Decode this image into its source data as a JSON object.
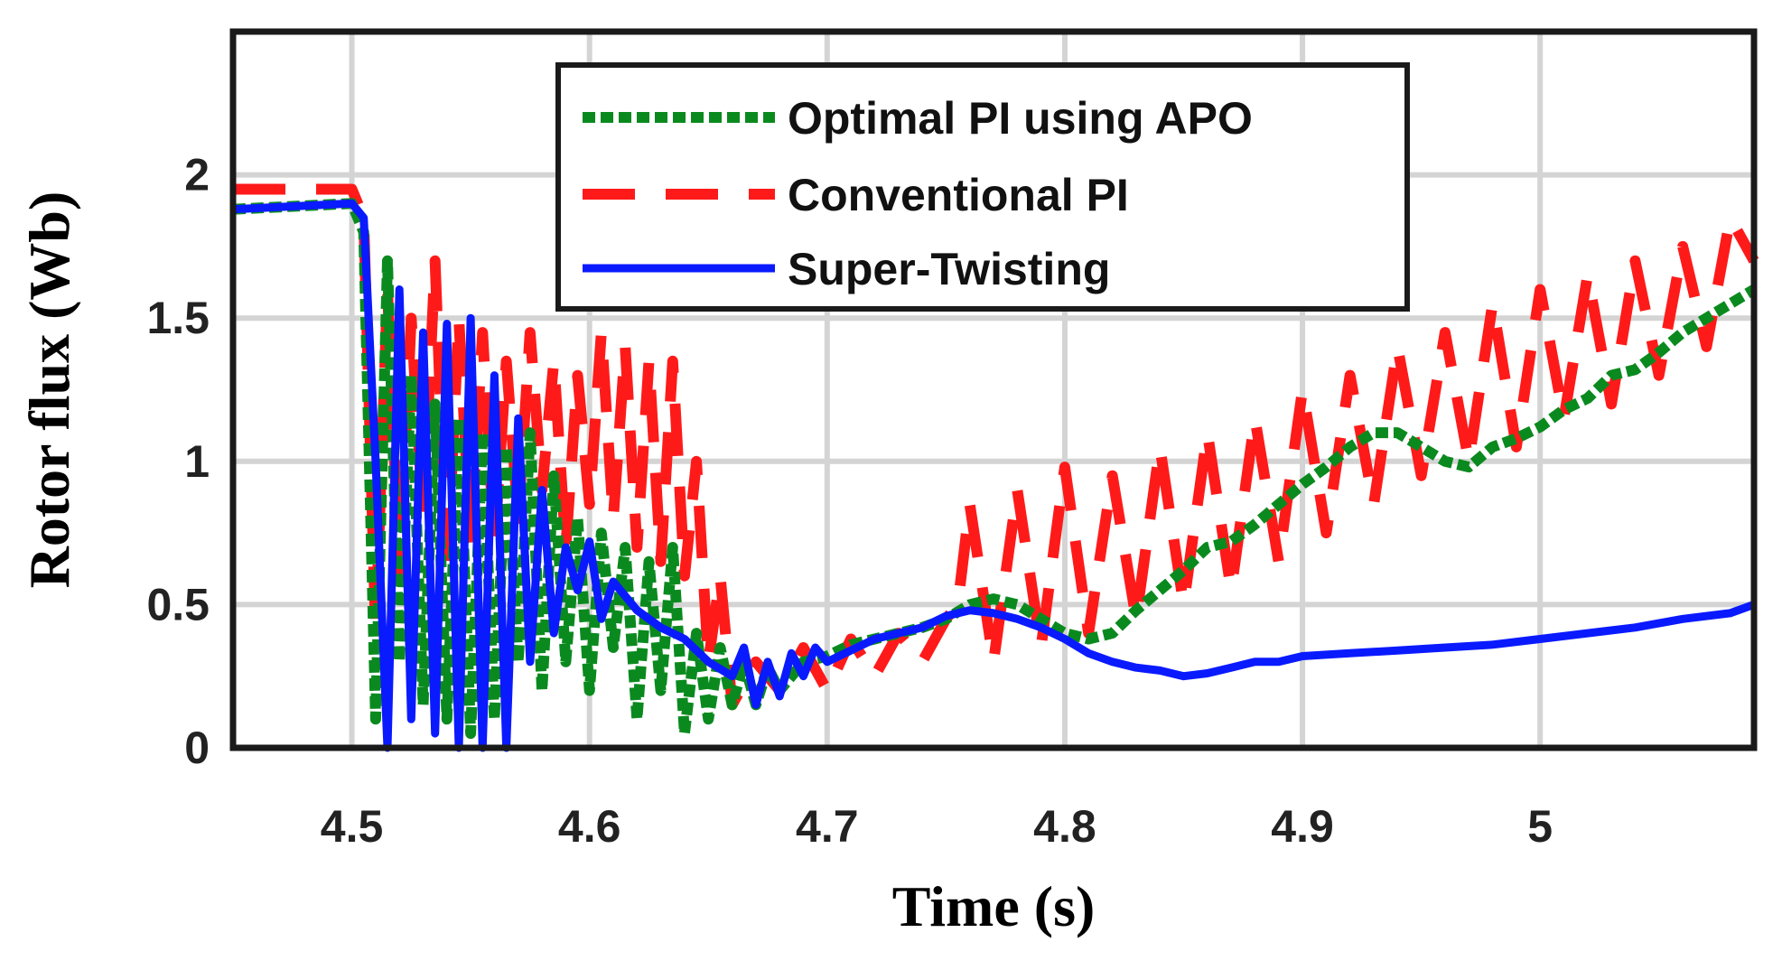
{
  "chart_data": {
    "type": "line",
    "title": "",
    "xlabel": "Time (s)",
    "ylabel": "Rotor flux (Wb)",
    "xlim": [
      4.45,
      5.09
    ],
    "ylim": [
      0,
      2.5
    ],
    "grid": true,
    "legend_position": "top-center",
    "x_ticks": [
      4.5,
      4.6,
      4.7,
      4.8,
      4.9,
      5
    ],
    "x_tick_labels": [
      "4.5",
      "4.6",
      "4.7",
      "4.8",
      "4.9",
      "5"
    ],
    "y_ticks": [
      0,
      0.5,
      1,
      1.5,
      2
    ],
    "y_tick_labels": [
      "0",
      "0.5",
      "1",
      "1.5",
      "2"
    ],
    "series": [
      {
        "name": "Optimal PI using APO",
        "color": "#0a8a1e",
        "style": "dotted",
        "x": [
          4.45,
          4.5,
          4.505,
          4.51,
          4.515,
          4.52,
          4.525,
          4.53,
          4.535,
          4.54,
          4.545,
          4.55,
          4.555,
          4.56,
          4.565,
          4.57,
          4.575,
          4.58,
          4.585,
          4.59,
          4.595,
          4.6,
          4.605,
          4.61,
          4.615,
          4.62,
          4.625,
          4.63,
          4.635,
          4.64,
          4.645,
          4.65,
          4.655,
          4.66,
          4.665,
          4.67,
          4.675,
          4.68,
          4.69,
          4.7,
          4.71,
          4.72,
          4.73,
          4.74,
          4.75,
          4.76,
          4.77,
          4.78,
          4.79,
          4.8,
          4.81,
          4.82,
          4.83,
          4.84,
          4.85,
          4.86,
          4.87,
          4.88,
          4.89,
          4.9,
          4.91,
          4.92,
          4.93,
          4.94,
          4.95,
          4.96,
          4.97,
          4.98,
          4.99,
          5.0,
          5.01,
          5.02,
          5.03,
          5.04,
          5.05,
          5.06,
          5.07,
          5.08,
          5.09
        ],
        "values": [
          1.88,
          1.9,
          1.8,
          0.1,
          1.7,
          0.3,
          1.3,
          0.15,
          1.2,
          0.1,
          1.15,
          0.05,
          1.1,
          0.1,
          1.05,
          0.3,
          1.1,
          0.2,
          0.95,
          0.3,
          0.8,
          0.2,
          0.75,
          0.35,
          0.7,
          0.1,
          0.65,
          0.2,
          0.7,
          0.05,
          0.4,
          0.1,
          0.35,
          0.15,
          0.3,
          0.15,
          0.28,
          0.2,
          0.3,
          0.32,
          0.36,
          0.38,
          0.4,
          0.42,
          0.45,
          0.5,
          0.52,
          0.5,
          0.45,
          0.4,
          0.38,
          0.4,
          0.48,
          0.55,
          0.62,
          0.7,
          0.72,
          0.78,
          0.85,
          0.92,
          0.98,
          1.05,
          1.1,
          1.1,
          1.05,
          1.0,
          0.98,
          1.05,
          1.08,
          1.12,
          1.18,
          1.22,
          1.3,
          1.32,
          1.38,
          1.45,
          1.5,
          1.55,
          1.6
        ]
      },
      {
        "name": "Conventional PI",
        "color": "#ff1a1a",
        "style": "dashed",
        "x": [
          4.45,
          4.5,
          4.505,
          4.51,
          4.515,
          4.52,
          4.525,
          4.53,
          4.535,
          4.54,
          4.545,
          4.55,
          4.555,
          4.56,
          4.565,
          4.57,
          4.575,
          4.58,
          4.585,
          4.59,
          4.595,
          4.6,
          4.605,
          4.61,
          4.615,
          4.62,
          4.625,
          4.63,
          4.635,
          4.64,
          4.645,
          4.65,
          4.655,
          4.66,
          4.67,
          4.68,
          4.69,
          4.7,
          4.71,
          4.72,
          4.73,
          4.74,
          4.75,
          4.755,
          4.76,
          4.77,
          4.78,
          4.79,
          4.8,
          4.81,
          4.82,
          4.83,
          4.84,
          4.85,
          4.86,
          4.87,
          4.88,
          4.89,
          4.9,
          4.91,
          4.92,
          4.93,
          4.94,
          4.95,
          4.96,
          4.97,
          4.98,
          4.99,
          5.0,
          5.01,
          5.02,
          5.03,
          5.04,
          5.05,
          5.06,
          5.07,
          5.08,
          5.09
        ],
        "values": [
          1.95,
          1.95,
          1.85,
          0.4,
          1.6,
          0.6,
          1.5,
          0.8,
          1.7,
          0.6,
          1.5,
          0.7,
          1.45,
          0.7,
          1.35,
          0.8,
          1.45,
          0.9,
          1.35,
          0.7,
          1.3,
          0.85,
          1.45,
          0.8,
          1.4,
          0.7,
          1.35,
          0.65,
          1.35,
          0.6,
          1.0,
          0.3,
          0.6,
          0.15,
          0.3,
          0.2,
          0.35,
          0.2,
          0.38,
          0.25,
          0.4,
          0.3,
          0.45,
          0.5,
          0.85,
          0.3,
          0.9,
          0.35,
          0.98,
          0.4,
          0.95,
          0.45,
          1.05,
          0.5,
          1.1,
          0.55,
          1.15,
          0.65,
          1.25,
          0.75,
          1.3,
          0.85,
          1.4,
          0.95,
          1.45,
          1.0,
          1.55,
          1.05,
          1.6,
          1.15,
          1.65,
          1.2,
          1.7,
          1.3,
          1.75,
          1.4,
          1.85,
          1.7
        ]
      },
      {
        "name": "Super-Twisting",
        "color": "#0a1aff",
        "style": "solid",
        "x": [
          4.45,
          4.5,
          4.505,
          4.51,
          4.515,
          4.52,
          4.525,
          4.53,
          4.535,
          4.54,
          4.545,
          4.55,
          4.555,
          4.56,
          4.565,
          4.57,
          4.575,
          4.58,
          4.585,
          4.59,
          4.595,
          4.6,
          4.605,
          4.61,
          4.62,
          4.63,
          4.64,
          4.65,
          4.66,
          4.665,
          4.67,
          4.675,
          4.68,
          4.685,
          4.69,
          4.695,
          4.7,
          4.71,
          4.72,
          4.73,
          4.74,
          4.75,
          4.76,
          4.77,
          4.78,
          4.79,
          4.8,
          4.81,
          4.82,
          4.83,
          4.84,
          4.85,
          4.86,
          4.87,
          4.88,
          4.89,
          4.9,
          4.92,
          4.94,
          4.96,
          4.98,
          5.0,
          5.02,
          5.04,
          5.06,
          5.08,
          5.09
        ],
        "values": [
          1.88,
          1.9,
          1.85,
          1.0,
          0.0,
          1.6,
          0.1,
          1.45,
          0.05,
          1.48,
          0.0,
          1.5,
          0.0,
          1.3,
          0.0,
          1.15,
          0.3,
          0.9,
          0.4,
          0.7,
          0.55,
          0.72,
          0.45,
          0.58,
          0.48,
          0.42,
          0.38,
          0.3,
          0.25,
          0.35,
          0.15,
          0.3,
          0.18,
          0.33,
          0.25,
          0.35,
          0.3,
          0.34,
          0.38,
          0.4,
          0.42,
          0.46,
          0.48,
          0.47,
          0.45,
          0.42,
          0.38,
          0.33,
          0.3,
          0.28,
          0.27,
          0.25,
          0.26,
          0.28,
          0.3,
          0.3,
          0.32,
          0.33,
          0.34,
          0.35,
          0.36,
          0.38,
          0.4,
          0.42,
          0.45,
          0.47,
          0.5
        ]
      }
    ]
  }
}
